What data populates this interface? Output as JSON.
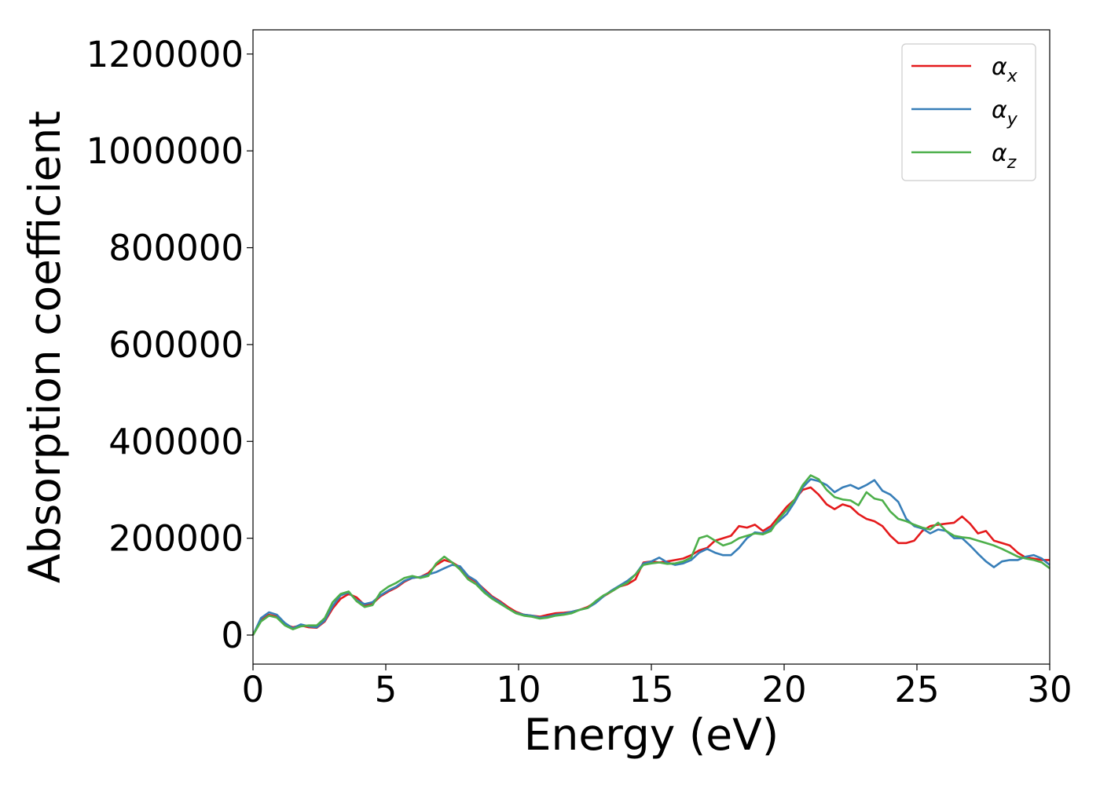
{
  "chart_data": {
    "type": "line",
    "title": "",
    "xlabel": "Energy (eV)",
    "ylabel": "Absorption coefficient",
    "xlim": [
      0,
      30
    ],
    "ylim": [
      -60000,
      1250000
    ],
    "xticks": [
      0,
      5,
      10,
      15,
      20,
      25,
      30
    ],
    "xtick_labels": [
      "0",
      "5",
      "10",
      "15",
      "20",
      "25",
      "30"
    ],
    "yticks": [
      0,
      200000,
      400000,
      600000,
      800000,
      1000000,
      1200000
    ],
    "ytick_labels": [
      "0",
      "200000",
      "400000",
      "600000",
      "800000",
      "1000000",
      "1200000"
    ],
    "grid": false,
    "legend_position": "top-right",
    "series": [
      {
        "name": "αx",
        "symbol": "α",
        "subscript": "x",
        "color": "#e41a1c",
        "x": [
          0,
          0.3,
          0.6,
          0.9,
          1.2,
          1.5,
          1.8,
          2.1,
          2.4,
          2.7,
          3.0,
          3.3,
          3.6,
          3.9,
          4.2,
          4.5,
          4.8,
          5.1,
          5.4,
          5.7,
          6.0,
          6.3,
          6.6,
          6.9,
          7.2,
          7.5,
          7.8,
          8.1,
          8.4,
          8.7,
          9.0,
          9.3,
          9.6,
          9.9,
          10.2,
          10.5,
          10.8,
          11.1,
          11.4,
          11.7,
          12.0,
          12.3,
          12.6,
          12.9,
          13.2,
          13.5,
          13.8,
          14.1,
          14.4,
          14.7,
          15.0,
          15.3,
          15.6,
          15.9,
          16.2,
          16.5,
          16.8,
          17.1,
          17.4,
          17.7,
          18.0,
          18.3,
          18.6,
          18.9,
          19.2,
          19.5,
          19.8,
          20.1,
          20.4,
          20.7,
          21.0,
          21.3,
          21.6,
          21.9,
          22.2,
          22.5,
          22.8,
          23.1,
          23.4,
          23.7,
          24.0,
          24.3,
          24.6,
          24.9,
          25.2,
          25.5,
          25.8,
          26.1,
          26.4,
          26.7,
          27.0,
          27.3,
          27.6,
          27.9,
          28.2,
          28.5,
          28.8,
          29.1,
          29.4,
          29.7,
          30.0
        ],
        "y": [
          0,
          30000,
          42000,
          38000,
          22000,
          16000,
          20000,
          16000,
          15000,
          28000,
          55000,
          75000,
          85000,
          78000,
          62000,
          65000,
          80000,
          90000,
          98000,
          110000,
          118000,
          120000,
          128000,
          145000,
          155000,
          150000,
          140000,
          120000,
          110000,
          95000,
          80000,
          70000,
          58000,
          48000,
          42000,
          40000,
          38000,
          42000,
          45000,
          46000,
          48000,
          52000,
          58000,
          68000,
          80000,
          90000,
          100000,
          105000,
          115000,
          150000,
          152000,
          150000,
          152000,
          155000,
          158000,
          165000,
          175000,
          180000,
          195000,
          200000,
          205000,
          225000,
          222000,
          228000,
          215000,
          225000,
          245000,
          265000,
          280000,
          300000,
          305000,
          290000,
          270000,
          260000,
          270000,
          265000,
          250000,
          240000,
          235000,
          225000,
          205000,
          190000,
          190000,
          195000,
          215000,
          225000,
          228000,
          230000,
          232000,
          245000,
          230000,
          210000,
          215000,
          195000,
          190000,
          185000,
          170000,
          160000,
          158000,
          155000,
          155000
        ]
      },
      {
        "name": "αy",
        "symbol": "α",
        "subscript": "y",
        "color": "#377eb8",
        "x": [
          0,
          0.3,
          0.6,
          0.9,
          1.2,
          1.5,
          1.8,
          2.1,
          2.4,
          2.7,
          3.0,
          3.3,
          3.6,
          3.9,
          4.2,
          4.5,
          4.8,
          5.1,
          5.4,
          5.7,
          6.0,
          6.3,
          6.6,
          6.9,
          7.2,
          7.5,
          7.8,
          8.1,
          8.4,
          8.7,
          9.0,
          9.3,
          9.6,
          9.9,
          10.2,
          10.5,
          10.8,
          11.1,
          11.4,
          11.7,
          12.0,
          12.3,
          12.6,
          12.9,
          13.2,
          13.5,
          13.8,
          14.1,
          14.4,
          14.7,
          15.0,
          15.3,
          15.6,
          15.9,
          16.2,
          16.5,
          16.8,
          17.1,
          17.4,
          17.7,
          18.0,
          18.3,
          18.6,
          18.9,
          19.2,
          19.5,
          19.8,
          20.1,
          20.4,
          20.7,
          21.0,
          21.3,
          21.6,
          21.9,
          22.2,
          22.5,
          22.8,
          23.1,
          23.4,
          23.7,
          24.0,
          24.3,
          24.6,
          24.9,
          25.2,
          25.5,
          25.8,
          26.1,
          26.4,
          26.7,
          27.0,
          27.3,
          27.6,
          27.9,
          28.2,
          28.5,
          28.8,
          29.1,
          29.4,
          29.7,
          30.0
        ],
        "y": [
          0,
          35000,
          47000,
          42000,
          25000,
          14000,
          22000,
          18000,
          16000,
          30000,
          60000,
          82000,
          88000,
          72000,
          64000,
          68000,
          82000,
          92000,
          100000,
          112000,
          118000,
          120000,
          125000,
          130000,
          138000,
          145000,
          142000,
          122000,
          112000,
          92000,
          78000,
          68000,
          55000,
          46000,
          42000,
          40000,
          36000,
          38000,
          42000,
          44000,
          48000,
          52000,
          56000,
          66000,
          80000,
          92000,
          102000,
          112000,
          125000,
          148000,
          152000,
          160000,
          150000,
          145000,
          148000,
          155000,
          170000,
          178000,
          170000,
          165000,
          165000,
          180000,
          200000,
          212000,
          210000,
          220000,
          235000,
          250000,
          275000,
          305000,
          322000,
          318000,
          310000,
          295000,
          305000,
          310000,
          302000,
          310000,
          320000,
          298000,
          290000,
          275000,
          240000,
          225000,
          220000,
          210000,
          218000,
          215000,
          200000,
          200000,
          185000,
          168000,
          152000,
          140000,
          152000,
          155000,
          155000,
          162000,
          165000,
          158000,
          145000
        ]
      },
      {
        "name": "αz",
        "symbol": "α",
        "subscript": "z",
        "color": "#4daf4a",
        "x": [
          0,
          0.3,
          0.6,
          0.9,
          1.2,
          1.5,
          1.8,
          2.1,
          2.4,
          2.7,
          3.0,
          3.3,
          3.6,
          3.9,
          4.2,
          4.5,
          4.8,
          5.1,
          5.4,
          5.7,
          6.0,
          6.3,
          6.6,
          6.9,
          7.2,
          7.5,
          7.8,
          8.1,
          8.4,
          8.7,
          9.0,
          9.3,
          9.6,
          9.9,
          10.2,
          10.5,
          10.8,
          11.1,
          11.4,
          11.7,
          12.0,
          12.3,
          12.6,
          12.9,
          13.2,
          13.5,
          13.8,
          14.1,
          14.4,
          14.7,
          15.0,
          15.3,
          15.6,
          15.9,
          16.2,
          16.5,
          16.8,
          17.1,
          17.4,
          17.7,
          18.0,
          18.3,
          18.6,
          18.9,
          19.2,
          19.5,
          19.8,
          20.1,
          20.4,
          20.7,
          21.0,
          21.3,
          21.6,
          21.9,
          22.2,
          22.5,
          22.8,
          23.1,
          23.4,
          23.7,
          24.0,
          24.3,
          24.6,
          24.9,
          25.2,
          25.5,
          25.8,
          26.1,
          26.4,
          26.7,
          27.0,
          27.3,
          27.6,
          27.9,
          28.2,
          28.5,
          28.8,
          29.1,
          29.4,
          29.7,
          30.0
        ],
        "y": [
          0,
          28000,
          40000,
          36000,
          20000,
          12000,
          18000,
          20000,
          20000,
          35000,
          68000,
          85000,
          90000,
          70000,
          58000,
          62000,
          88000,
          100000,
          108000,
          118000,
          122000,
          118000,
          122000,
          148000,
          162000,
          150000,
          135000,
          115000,
          105000,
          88000,
          75000,
          65000,
          55000,
          45000,
          40000,
          38000,
          34000,
          36000,
          40000,
          42000,
          45000,
          52000,
          56000,
          70000,
          82000,
          90000,
          100000,
          108000,
          125000,
          145000,
          148000,
          150000,
          147000,
          148000,
          152000,
          160000,
          200000,
          205000,
          195000,
          185000,
          190000,
          200000,
          205000,
          210000,
          208000,
          215000,
          240000,
          258000,
          280000,
          310000,
          330000,
          322000,
          300000,
          285000,
          280000,
          278000,
          268000,
          295000,
          282000,
          278000,
          255000,
          240000,
          235000,
          228000,
          222000,
          218000,
          232000,
          215000,
          205000,
          202000,
          200000,
          195000,
          190000,
          185000,
          178000,
          170000,
          162000,
          158000,
          155000,
          150000,
          138000
        ]
      }
    ]
  }
}
